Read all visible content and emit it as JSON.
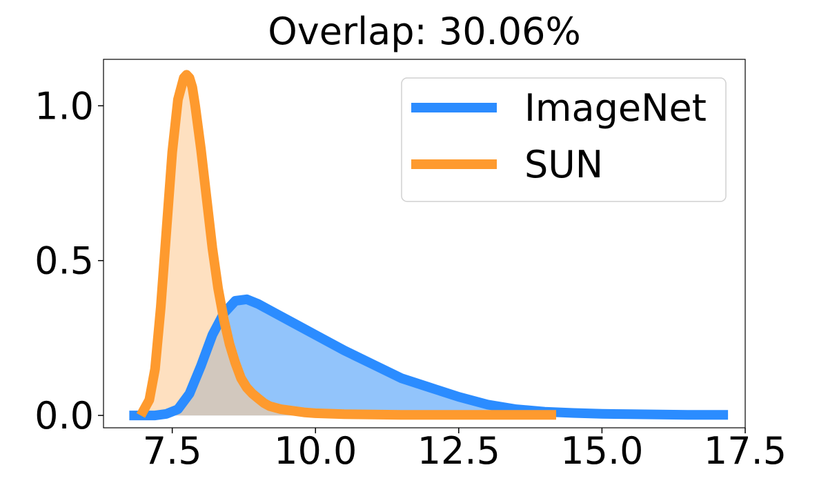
{
  "chart_data": {
    "type": "area",
    "title": "Overlap: 30.06%",
    "xlabel": "",
    "ylabel": "",
    "xlim": [
      6.3,
      17.5
    ],
    "ylim": [
      -0.04,
      1.15
    ],
    "xticks": [
      7.5,
      10.0,
      12.5,
      15.0,
      17.5
    ],
    "xtick_labels": [
      "7.5",
      "10.0",
      "12.5",
      "15.0",
      "17.5"
    ],
    "yticks": [
      0.0,
      0.5,
      1.0
    ],
    "ytick_labels": [
      "0.0",
      "0.5",
      "1.0"
    ],
    "grid": false,
    "legend_position": "top-right",
    "series": [
      {
        "name": "ImageNet",
        "line_color": "#2b8cff",
        "fill_color": "#92c4fb",
        "x": [
          6.75,
          7.0,
          7.2,
          7.4,
          7.6,
          7.8,
          8.0,
          8.2,
          8.4,
          8.6,
          8.8,
          9.0,
          9.3,
          9.6,
          10.0,
          10.5,
          11.0,
          11.5,
          12.0,
          12.5,
          13.0,
          13.5,
          14.0,
          14.5,
          15.0,
          15.5,
          16.0,
          16.5,
          17.0,
          17.2
        ],
        "y": [
          0.0,
          0.0,
          0.0,
          0.005,
          0.02,
          0.07,
          0.16,
          0.26,
          0.33,
          0.37,
          0.375,
          0.36,
          0.33,
          0.3,
          0.26,
          0.21,
          0.165,
          0.12,
          0.09,
          0.06,
          0.035,
          0.02,
          0.012,
          0.008,
          0.005,
          0.004,
          0.003,
          0.002,
          0.002,
          0.002
        ]
      },
      {
        "name": "SUN",
        "line_color": "#fe9a2e",
        "fill_color": "#fecb96",
        "x": [
          6.95,
          7.1,
          7.2,
          7.3,
          7.4,
          7.5,
          7.6,
          7.7,
          7.75,
          7.8,
          7.85,
          7.9,
          8.0,
          8.1,
          8.2,
          8.3,
          8.4,
          8.5,
          8.6,
          8.7,
          8.8,
          8.9,
          9.0,
          9.1,
          9.2,
          9.4,
          9.6,
          9.8,
          10.0,
          10.5,
          11.0,
          11.5,
          12.0,
          12.5,
          13.0,
          13.5,
          14.0,
          14.2
        ],
        "y": [
          0.0,
          0.05,
          0.15,
          0.35,
          0.6,
          0.85,
          1.02,
          1.09,
          1.1,
          1.09,
          1.06,
          1.0,
          0.86,
          0.7,
          0.54,
          0.41,
          0.31,
          0.23,
          0.17,
          0.12,
          0.09,
          0.07,
          0.055,
          0.04,
          0.03,
          0.02,
          0.015,
          0.01,
          0.007,
          0.004,
          0.003,
          0.002,
          0.002,
          0.002,
          0.002,
          0.002,
          0.002,
          0.002
        ]
      }
    ]
  }
}
